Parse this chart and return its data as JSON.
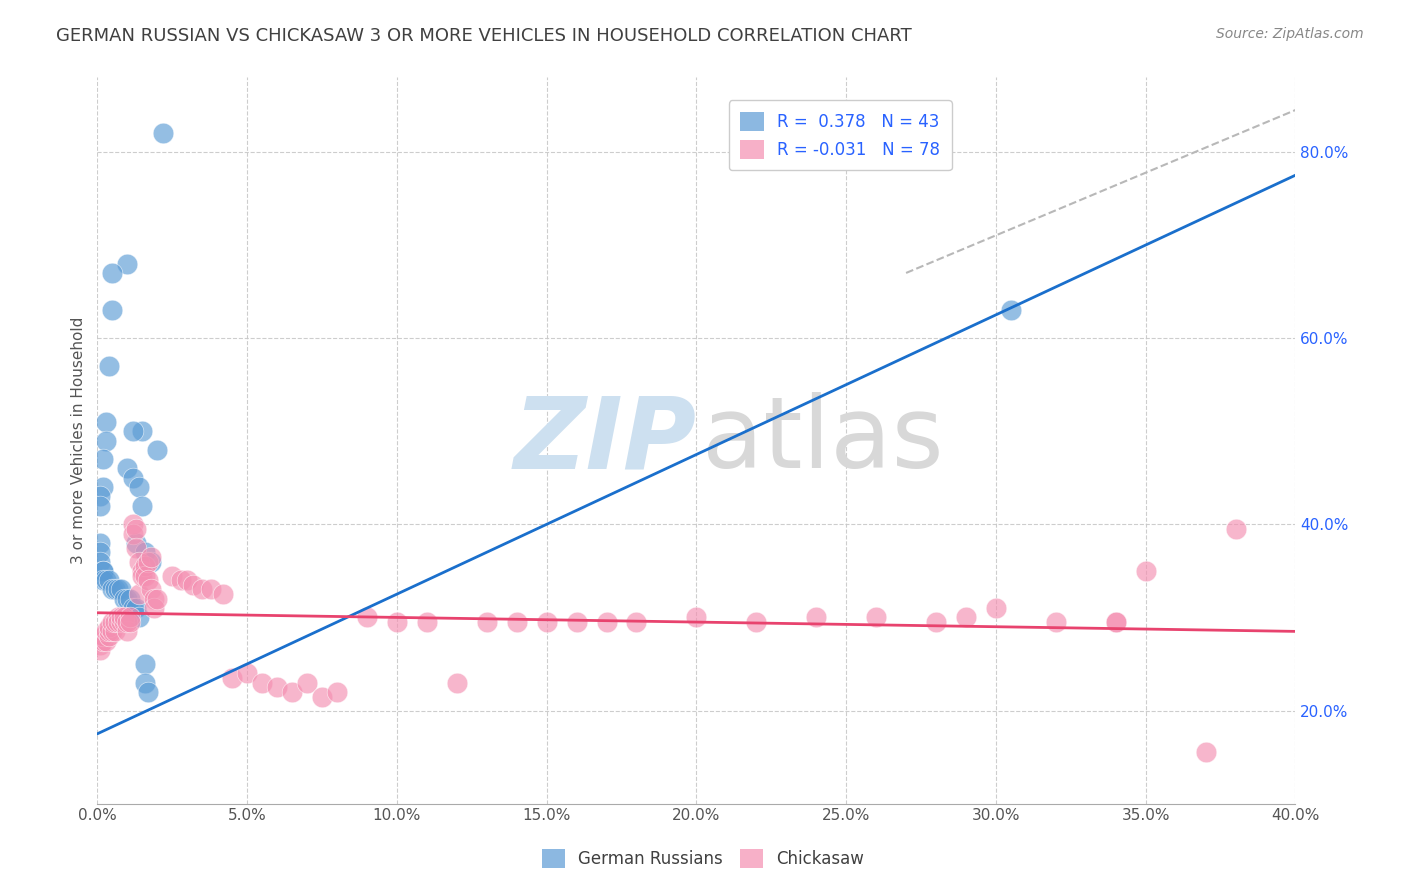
{
  "title": "GERMAN RUSSIAN VS CHICKASAW 3 OR MORE VEHICLES IN HOUSEHOLD CORRELATION CHART",
  "source": "Source: ZipAtlas.com",
  "ylabel": "3 or more Vehicles in Household",
  "xlim": [
    0.0,
    0.4
  ],
  "ylim": [
    0.1,
    0.88
  ],
  "xticks": [
    0.0,
    0.05,
    0.1,
    0.15,
    0.2,
    0.25,
    0.3,
    0.35,
    0.4
  ],
  "yticks": [
    0.2,
    0.4,
    0.6,
    0.8
  ],
  "legend_r1": "R =  0.378   N = 43",
  "legend_r2": "R = -0.031   N = 78",
  "blue_scatter_x": [
    0.022,
    0.01,
    0.005,
    0.005,
    0.004,
    0.003,
    0.003,
    0.002,
    0.002,
    0.001,
    0.001,
    0.001,
    0.001,
    0.001,
    0.002,
    0.002,
    0.002,
    0.003,
    0.004,
    0.005,
    0.006,
    0.007,
    0.008,
    0.009,
    0.01,
    0.011,
    0.012,
    0.013,
    0.014,
    0.01,
    0.012,
    0.014,
    0.015,
    0.013,
    0.016,
    0.018,
    0.016,
    0.02,
    0.016,
    0.017,
    0.305,
    0.015,
    0.012
  ],
  "blue_scatter_y": [
    0.82,
    0.68,
    0.67,
    0.63,
    0.57,
    0.51,
    0.49,
    0.47,
    0.44,
    0.43,
    0.42,
    0.38,
    0.37,
    0.36,
    0.35,
    0.35,
    0.34,
    0.34,
    0.34,
    0.33,
    0.33,
    0.33,
    0.33,
    0.32,
    0.32,
    0.32,
    0.31,
    0.31,
    0.3,
    0.46,
    0.45,
    0.44,
    0.42,
    0.38,
    0.37,
    0.36,
    0.25,
    0.48,
    0.23,
    0.22,
    0.63,
    0.5,
    0.5
  ],
  "pink_scatter_x": [
    0.001,
    0.001,
    0.002,
    0.002,
    0.003,
    0.003,
    0.004,
    0.004,
    0.004,
    0.005,
    0.005,
    0.006,
    0.006,
    0.007,
    0.007,
    0.008,
    0.008,
    0.009,
    0.009,
    0.01,
    0.01,
    0.011,
    0.011,
    0.012,
    0.012,
    0.013,
    0.013,
    0.014,
    0.014,
    0.015,
    0.015,
    0.016,
    0.016,
    0.017,
    0.017,
    0.018,
    0.018,
    0.019,
    0.019,
    0.02,
    0.025,
    0.028,
    0.03,
    0.032,
    0.035,
    0.038,
    0.042,
    0.045,
    0.05,
    0.055,
    0.06,
    0.065,
    0.07,
    0.075,
    0.08,
    0.09,
    0.1,
    0.11,
    0.12,
    0.13,
    0.14,
    0.15,
    0.16,
    0.17,
    0.18,
    0.2,
    0.22,
    0.24,
    0.26,
    0.28,
    0.29,
    0.3,
    0.32,
    0.34,
    0.38,
    0.34,
    0.35,
    0.37
  ],
  "pink_scatter_y": [
    0.27,
    0.265,
    0.275,
    0.28,
    0.275,
    0.285,
    0.28,
    0.285,
    0.29,
    0.285,
    0.295,
    0.285,
    0.295,
    0.3,
    0.295,
    0.295,
    0.3,
    0.295,
    0.3,
    0.285,
    0.295,
    0.3,
    0.295,
    0.4,
    0.39,
    0.395,
    0.375,
    0.36,
    0.325,
    0.35,
    0.345,
    0.355,
    0.345,
    0.36,
    0.34,
    0.365,
    0.33,
    0.32,
    0.31,
    0.32,
    0.345,
    0.34,
    0.34,
    0.335,
    0.33,
    0.33,
    0.325,
    0.235,
    0.24,
    0.23,
    0.225,
    0.22,
    0.23,
    0.215,
    0.22,
    0.3,
    0.295,
    0.295,
    0.23,
    0.295,
    0.295,
    0.295,
    0.295,
    0.295,
    0.295,
    0.3,
    0.295,
    0.3,
    0.3,
    0.295,
    0.3,
    0.31,
    0.295,
    0.295,
    0.395,
    0.295,
    0.35,
    0.155
  ],
  "blue_line_x": [
    0.0,
    0.4
  ],
  "blue_line_y": [
    0.175,
    0.775
  ],
  "pink_line_x": [
    0.0,
    0.4
  ],
  "pink_line_y": [
    0.305,
    0.285
  ],
  "dashed_line_x": [
    0.27,
    0.4
  ],
  "dashed_line_y": [
    0.67,
    0.845
  ],
  "blue_color": "#5b9bd5",
  "pink_color": "#f48fb1",
  "blue_line_color": "#1a6fcc",
  "pink_line_color": "#e8436e",
  "dashed_line_color": "#b8b8b8",
  "grid_color": "#c8c8c8",
  "grid_linestyle": "--",
  "background_color": "#ffffff",
  "title_color": "#404040",
  "watermark_zip_color": "#cde0f0",
  "watermark_atlas_color": "#d8d8d8"
}
